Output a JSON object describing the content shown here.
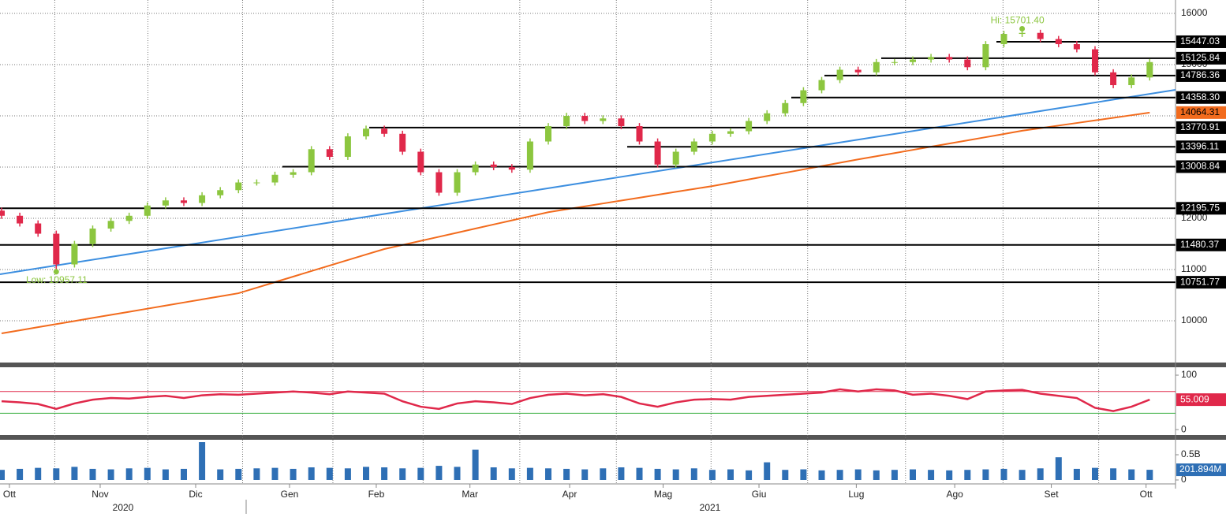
{
  "chart_data": [
    {
      "type": "candlestick",
      "open": [
        12150,
        12050,
        11900,
        11700,
        11100,
        11500,
        11800,
        11950,
        12050,
        12250,
        12350,
        12300,
        12450,
        12550,
        12700,
        12700,
        12850,
        12900,
        13350,
        13200,
        13600,
        13750,
        13650,
        13300,
        12900,
        12500,
        12900,
        13050,
        13000,
        12950,
        13500,
        13800,
        14000,
        13900,
        13950,
        13800,
        13500,
        13050,
        13300,
        13500,
        13650,
        13700,
        13900,
        14050,
        14250,
        14500,
        14700,
        14900,
        14850,
        15050,
        15050,
        15100,
        15150,
        15100,
        14950,
        15400,
        15600,
        15620,
        15500,
        15400,
        15300,
        14850,
        14600,
        14750
      ],
      "high": [
        12210,
        12110,
        11960,
        11760,
        11560,
        11860,
        12010,
        12110,
        12310,
        12410,
        12410,
        12510,
        12610,
        12760,
        12760,
        12910,
        12960,
        13410,
        13410,
        13660,
        13810,
        13810,
        13710,
        13360,
        12960,
        12960,
        13110,
        13110,
        13060,
        13560,
        13860,
        14060,
        14060,
        14010,
        14010,
        13860,
        13560,
        13360,
        13560,
        13710,
        13760,
        13960,
        14110,
        14310,
        14560,
        14760,
        14960,
        14960,
        15110,
        15110,
        15160,
        15210,
        15210,
        15160,
        15460,
        15660,
        15701.4,
        15680,
        15560,
        15460,
        15360,
        14910,
        14810,
        15110
      ],
      "low": [
        11990,
        11840,
        11640,
        10957.11,
        11040,
        11440,
        11740,
        11890,
        11990,
        12190,
        12240,
        12240,
        12390,
        12490,
        12640,
        12640,
        12790,
        12840,
        13140,
        13140,
        13540,
        13590,
        13240,
        12840,
        12440,
        12440,
        12840,
        12940,
        12890,
        12890,
        13440,
        13740,
        13840,
        13840,
        13740,
        13440,
        12990,
        12990,
        13240,
        13440,
        13590,
        13640,
        13840,
        13990,
        14190,
        14440,
        14640,
        14790,
        14790,
        14990,
        14990,
        15040,
        15040,
        14890,
        14890,
        15340,
        15540,
        15440,
        15340,
        15240,
        14790,
        14540,
        14540,
        14690
      ],
      "close": [
        12050,
        11900,
        11700,
        11100,
        11500,
        11800,
        11950,
        12050,
        12250,
        12350,
        12300,
        12450,
        12550,
        12700,
        12700,
        12850,
        12900,
        13350,
        13200,
        13600,
        13750,
        13650,
        13300,
        12900,
        12500,
        12900,
        13050,
        13000,
        12950,
        13500,
        13800,
        14000,
        13900,
        13950,
        13800,
        13500,
        13050,
        13300,
        13500,
        13650,
        13700,
        13900,
        14050,
        14250,
        14500,
        14700,
        14900,
        14850,
        15050,
        15050,
        15100,
        15150,
        15100,
        14950,
        15400,
        15600,
        15620,
        15500,
        15400,
        15300,
        14850,
        14600,
        14750,
        15050
      ],
      "up_color": "#8cc63f",
      "down_color": "#e0284a",
      "ma": {
        "color": "#f26b1d",
        "values": [
          9754,
          9814,
          9875,
          9935,
          9995,
          10056,
          10116,
          10176,
          10236,
          10297,
          10357,
          10417,
          10478,
          10538,
          10646,
          10754,
          10862,
          10970,
          11078,
          11186,
          11294,
          11400,
          11480,
          11560,
          11640,
          11720,
          11800,
          11880,
          11960,
          12040,
          12120,
          12177,
          12233,
          12290,
          12347,
          12403,
          12460,
          12517,
          12573,
          12630,
          12695,
          12760,
          12825,
          12890,
          12955,
          13020,
          13085,
          13150,
          13212,
          13274,
          13336,
          13398,
          13460,
          13522,
          13584,
          13646,
          13710,
          13760,
          13811,
          13861,
          13912,
          13962,
          14013,
          14064.31
        ]
      },
      "trendline": {
        "color": "#3d8fe0",
        "values": [
          10908,
          14508
        ]
      },
      "levels": [
        15447.03,
        15125.84,
        14786.36,
        {
          "value": 14358.3,
          "label": "14358.30"
        },
        13770.91,
        13396.11,
        13008.84,
        12195.75,
        11480.37,
        10751.77
      ],
      "annotations": {
        "high": "Hi: 15701.40",
        "low": "Low: 10957.11"
      },
      "ylim": [
        9185,
        16262
      ],
      "yticks": [
        10000,
        11000,
        12000,
        13000,
        14000,
        15000,
        16000
      ],
      "xticks": [
        {
          "value": 0.43,
          "label": "Ott"
        },
        {
          "value": 5.41,
          "label": "Nov"
        },
        {
          "value": 10.65,
          "label": "Dic"
        },
        {
          "value": 15.8,
          "label": "Gen"
        },
        {
          "value": 20.56,
          "label": "Feb"
        },
        {
          "value": 25.7,
          "label": "Mar"
        },
        {
          "value": 31.17,
          "label": "Apr"
        },
        {
          "value": 36.3,
          "label": "Mag"
        },
        {
          "value": 41.56,
          "label": "Giu"
        },
        {
          "value": 46.9,
          "label": "Lug"
        },
        {
          "value": 52.3,
          "label": "Ago"
        },
        {
          "value": 57.6,
          "label": "Set"
        },
        {
          "value": 62.8,
          "label": "Ott"
        }
      ],
      "year_labels": [
        "2020",
        "2021"
      ],
      "grid": true
    },
    {
      "type": "line",
      "color": "#e0284a",
      "values": [
        52,
        50,
        47,
        38,
        48,
        55,
        58,
        57,
        60,
        62,
        58,
        63,
        65,
        64,
        66,
        68,
        70,
        68,
        65,
        70,
        68,
        66,
        52,
        42,
        38,
        48,
        52,
        50,
        47,
        58,
        64,
        66,
        63,
        65,
        60,
        48,
        42,
        50,
        55,
        56,
        55,
        60,
        62,
        64,
        66,
        68,
        74,
        70,
        74,
        72,
        64,
        66,
        62,
        56,
        70,
        72,
        73,
        66,
        62,
        58,
        40,
        34,
        42,
        55.009
      ],
      "bands": [
        {
          "value": 70,
          "color": "#e0284a"
        },
        {
          "value": 30,
          "color": "#3cb043"
        }
      ],
      "ylim": [
        -10,
        114.5
      ],
      "yticks": [
        0,
        100
      ]
    },
    {
      "type": "bar",
      "color": "#2e6fb5",
      "values": [
        200000000,
        220000000,
        240000000,
        230000000,
        260000000,
        220000000,
        210000000,
        230000000,
        240000000,
        210000000,
        220000000,
        750000000,
        210000000,
        220000000,
        230000000,
        240000000,
        220000000,
        250000000,
        240000000,
        230000000,
        260000000,
        250000000,
        230000000,
        240000000,
        280000000,
        260000000,
        600000000,
        250000000,
        230000000,
        240000000,
        230000000,
        220000000,
        210000000,
        230000000,
        250000000,
        240000000,
        220000000,
        210000000,
        230000000,
        200000000,
        210000000,
        190000000,
        350000000,
        200000000,
        210000000,
        190000000,
        200000000,
        210000000,
        190000000,
        200000000,
        210000000,
        200000000,
        190000000,
        200000000,
        210000000,
        220000000,
        200000000,
        230000000,
        450000000,
        220000000,
        240000000,
        230000000,
        210000000,
        201894000
      ],
      "last_value_label": "201.894M",
      "ylim": [
        -47000000,
        797000000
      ],
      "yticks": [
        0,
        {
          "value": 500000000,
          "label": "0.5B"
        }
      ]
    }
  ]
}
